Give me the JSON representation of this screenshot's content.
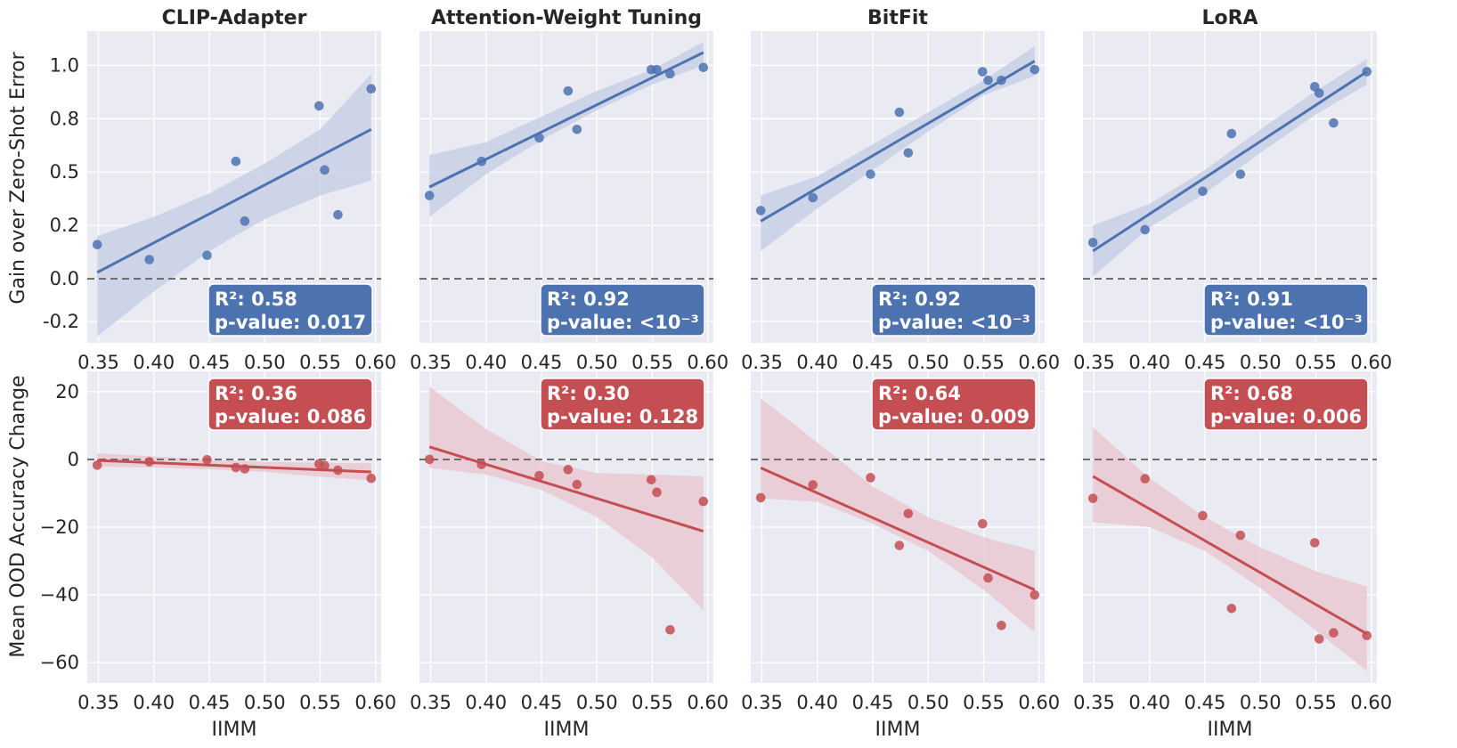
{
  "figure": {
    "row_ylabels": [
      "Gain over Zero-Shot Error",
      "Mean OOD Accuracy Change"
    ],
    "xlabel": "IIMM"
  },
  "chart_data": [
    {
      "type": "scatter",
      "title": "CLIP-Adapter",
      "xlabel": "",
      "ylabel": "Gain over Zero-Shot Error",
      "xlim": [
        0.34,
        0.605
      ],
      "ylim": [
        -0.3,
        1.16
      ],
      "xticks": [
        0.35,
        0.4,
        0.45,
        0.5,
        0.55,
        0.6
      ],
      "xtick_labels": [
        "0.35",
        "0.40",
        "0.45",
        "0.50",
        "0.55",
        "0.60"
      ],
      "yticks": [
        -0.2,
        0.0,
        0.25,
        0.5,
        0.75,
        1.0
      ],
      "ytick_labels": [
        "-0.2",
        "0.0",
        "0.2",
        "0.5",
        "0.8",
        "1.0"
      ],
      "refline_y": 0,
      "points": [
        [
          0.349,
          0.16
        ],
        [
          0.396,
          0.09
        ],
        [
          0.448,
          0.11
        ],
        [
          0.474,
          0.55
        ],
        [
          0.482,
          0.27
        ],
        [
          0.549,
          0.81
        ],
        [
          0.554,
          0.51
        ],
        [
          0.566,
          0.3
        ],
        [
          0.596,
          0.89
        ]
      ],
      "fit": [
        [
          0.349,
          0.03
        ],
        [
          0.596,
          0.7
        ]
      ],
      "ci_upper": [
        [
          0.349,
          0.2
        ],
        [
          0.4,
          0.29
        ],
        [
          0.45,
          0.4
        ],
        [
          0.5,
          0.54
        ],
        [
          0.55,
          0.7
        ],
        [
          0.596,
          0.96
        ]
      ],
      "ci_lower": [
        [
          0.349,
          -0.27
        ],
        [
          0.4,
          -0.06
        ],
        [
          0.45,
          0.13
        ],
        [
          0.5,
          0.28
        ],
        [
          0.55,
          0.39
        ],
        [
          0.596,
          0.46
        ]
      ],
      "color": "#4c72b0",
      "band_color": "#c8d0e6",
      "annotation": {
        "r2": "R²: 0.58",
        "p": "p-value: 0.017",
        "pos": "bottom-right"
      }
    },
    {
      "type": "scatter",
      "title": "Attention-Weight Tuning",
      "xlabel": "",
      "ylabel": "",
      "xlim": [
        0.34,
        0.605
      ],
      "ylim": [
        -0.3,
        1.16
      ],
      "xticks": [
        0.35,
        0.4,
        0.45,
        0.5,
        0.55,
        0.6
      ],
      "xtick_labels": [
        "0.35",
        "0.40",
        "0.45",
        "0.50",
        "0.55",
        "0.60"
      ],
      "yticks": [
        -0.2,
        0.0,
        0.25,
        0.5,
        0.75,
        1.0
      ],
      "ytick_labels": [],
      "refline_y": 0,
      "points": [
        [
          0.349,
          0.39
        ],
        [
          0.396,
          0.55
        ],
        [
          0.448,
          0.66
        ],
        [
          0.474,
          0.88
        ],
        [
          0.482,
          0.7
        ],
        [
          0.549,
          0.98
        ],
        [
          0.554,
          0.98
        ],
        [
          0.566,
          0.96
        ],
        [
          0.596,
          0.99
        ]
      ],
      "fit": [
        [
          0.349,
          0.43
        ],
        [
          0.596,
          1.06
        ]
      ],
      "ci_upper": [
        [
          0.349,
          0.58
        ],
        [
          0.4,
          0.64
        ],
        [
          0.45,
          0.76
        ],
        [
          0.5,
          0.88
        ],
        [
          0.55,
          0.98
        ],
        [
          0.596,
          1.11
        ]
      ],
      "ci_lower": [
        [
          0.349,
          0.29
        ],
        [
          0.4,
          0.49
        ],
        [
          0.45,
          0.65
        ],
        [
          0.5,
          0.79
        ],
        [
          0.55,
          0.91
        ],
        [
          0.596,
          1.0
        ]
      ],
      "color": "#4c72b0",
      "band_color": "#c8d0e6",
      "annotation": {
        "r2": "R²: 0.92",
        "p": "p-value: <10⁻³",
        "pos": "bottom-right"
      }
    },
    {
      "type": "scatter",
      "title": "BitFit",
      "xlabel": "",
      "ylabel": "",
      "xlim": [
        0.34,
        0.605
      ],
      "ylim": [
        -0.3,
        1.16
      ],
      "xticks": [
        0.35,
        0.4,
        0.45,
        0.5,
        0.55,
        0.6
      ],
      "xtick_labels": [
        "0.35",
        "0.40",
        "0.45",
        "0.50",
        "0.55",
        "0.60"
      ],
      "yticks": [
        -0.2,
        0.0,
        0.25,
        0.5,
        0.75,
        1.0
      ],
      "ytick_labels": [],
      "refline_y": 0,
      "points": [
        [
          0.349,
          0.32
        ],
        [
          0.396,
          0.38
        ],
        [
          0.448,
          0.49
        ],
        [
          0.474,
          0.78
        ],
        [
          0.482,
          0.59
        ],
        [
          0.549,
          0.97
        ],
        [
          0.554,
          0.93
        ],
        [
          0.566,
          0.93
        ],
        [
          0.596,
          0.98
        ]
      ],
      "fit": [
        [
          0.349,
          0.27
        ],
        [
          0.596,
          1.02
        ]
      ],
      "ci_upper": [
        [
          0.349,
          0.39
        ],
        [
          0.4,
          0.48
        ],
        [
          0.45,
          0.63
        ],
        [
          0.5,
          0.78
        ],
        [
          0.55,
          0.93
        ],
        [
          0.596,
          1.09
        ]
      ],
      "ci_lower": [
        [
          0.349,
          0.13
        ],
        [
          0.4,
          0.33
        ],
        [
          0.45,
          0.51
        ],
        [
          0.5,
          0.69
        ],
        [
          0.55,
          0.86
        ],
        [
          0.596,
          0.95
        ]
      ],
      "color": "#4c72b0",
      "band_color": "#c8d0e6",
      "annotation": {
        "r2": "R²: 0.92",
        "p": "p-value: <10⁻³",
        "pos": "bottom-right"
      }
    },
    {
      "type": "scatter",
      "title": "LoRA",
      "xlabel": "",
      "ylabel": "",
      "xlim": [
        0.34,
        0.605
      ],
      "ylim": [
        -0.3,
        1.16
      ],
      "xticks": [
        0.35,
        0.4,
        0.45,
        0.5,
        0.55,
        0.6
      ],
      "xtick_labels": [
        "0.35",
        "0.40",
        "0.45",
        "0.50",
        "0.55",
        "0.60"
      ],
      "yticks": [
        -0.2,
        0.0,
        0.25,
        0.5,
        0.75,
        1.0
      ],
      "ytick_labels": [],
      "refline_y": 0,
      "points": [
        [
          0.349,
          0.17
        ],
        [
          0.396,
          0.23
        ],
        [
          0.448,
          0.41
        ],
        [
          0.474,
          0.68
        ],
        [
          0.482,
          0.49
        ],
        [
          0.549,
          0.9
        ],
        [
          0.553,
          0.87
        ],
        [
          0.566,
          0.73
        ],
        [
          0.596,
          0.97
        ]
      ],
      "fit": [
        [
          0.349,
          0.13
        ],
        [
          0.596,
          0.97
        ]
      ],
      "ci_upper": [
        [
          0.349,
          0.25
        ],
        [
          0.4,
          0.35
        ],
        [
          0.45,
          0.51
        ],
        [
          0.5,
          0.7
        ],
        [
          0.55,
          0.88
        ],
        [
          0.596,
          1.03
        ]
      ],
      "ci_lower": [
        [
          0.349,
          0.01
        ],
        [
          0.4,
          0.24
        ],
        [
          0.45,
          0.4
        ],
        [
          0.5,
          0.59
        ],
        [
          0.55,
          0.77
        ],
        [
          0.596,
          0.91
        ]
      ],
      "color": "#4c72b0",
      "band_color": "#c8d0e6",
      "annotation": {
        "r2": "R²: 0.91",
        "p": "p-value: <10⁻³",
        "pos": "bottom-right"
      }
    },
    {
      "type": "scatter",
      "title": "",
      "xlabel": "IIMM",
      "ylabel": "Mean OOD Accuracy Change",
      "xlim": [
        0.34,
        0.605
      ],
      "ylim": [
        -66,
        26
      ],
      "xticks": [
        0.35,
        0.4,
        0.45,
        0.5,
        0.55,
        0.6
      ],
      "xtick_labels": [
        "0.35",
        "0.40",
        "0.45",
        "0.50",
        "0.55",
        "0.60"
      ],
      "yticks": [
        -60,
        -40,
        -20,
        0,
        20
      ],
      "ytick_labels": [
        "−60",
        "−40",
        "−20",
        "0",
        "20"
      ],
      "refline_y": 0,
      "points": [
        [
          0.349,
          -1.7
        ],
        [
          0.396,
          -0.7
        ],
        [
          0.448,
          -0.1
        ],
        [
          0.474,
          -2.4
        ],
        [
          0.482,
          -2.8
        ],
        [
          0.549,
          -1.3
        ],
        [
          0.554,
          -1.8
        ],
        [
          0.566,
          -3.2
        ],
        [
          0.596,
          -5.6
        ]
      ],
      "fit": [
        [
          0.349,
          -0.3
        ],
        [
          0.596,
          -3.7
        ]
      ],
      "ci_upper": [
        [
          0.349,
          1.8
        ],
        [
          0.4,
          0.9
        ],
        [
          0.45,
          -0.1
        ],
        [
          0.5,
          -0.7
        ],
        [
          0.55,
          -1.0
        ],
        [
          0.596,
          -1.1
        ]
      ],
      "ci_lower": [
        [
          0.349,
          -2.1
        ],
        [
          0.4,
          -2.4
        ],
        [
          0.45,
          -2.9
        ],
        [
          0.5,
          -3.7
        ],
        [
          0.55,
          -5.1
        ],
        [
          0.596,
          -6.2
        ]
      ],
      "color": "#c44e52",
      "band_color": "#e9c9d2",
      "annotation": {
        "r2": "R²: 0.36",
        "p": "p-value: 0.086",
        "pos": "top-right"
      }
    },
    {
      "type": "scatter",
      "title": "",
      "xlabel": "IIMM",
      "ylabel": "",
      "xlim": [
        0.34,
        0.605
      ],
      "ylim": [
        -66,
        26
      ],
      "xticks": [
        0.35,
        0.4,
        0.45,
        0.5,
        0.55,
        0.6
      ],
      "xtick_labels": [
        "0.35",
        "0.40",
        "0.45",
        "0.50",
        "0.55",
        "0.60"
      ],
      "yticks": [
        -60,
        -40,
        -20,
        0,
        20
      ],
      "ytick_labels": [],
      "refline_y": 0,
      "points": [
        [
          0.349,
          0.0
        ],
        [
          0.396,
          -1.5
        ],
        [
          0.448,
          -4.8
        ],
        [
          0.474,
          -3.0
        ],
        [
          0.482,
          -7.4
        ],
        [
          0.549,
          -6.0
        ],
        [
          0.554,
          -9.7
        ],
        [
          0.566,
          -50.3
        ],
        [
          0.596,
          -12.4
        ]
      ],
      "fit": [
        [
          0.349,
          3.7
        ],
        [
          0.596,
          -21.2
        ]
      ],
      "ci_upper": [
        [
          0.349,
          21.5
        ],
        [
          0.4,
          9.0
        ],
        [
          0.45,
          -0.5
        ],
        [
          0.5,
          -4.0
        ],
        [
          0.55,
          -4.5
        ],
        [
          0.596,
          -5.0
        ]
      ],
      "ci_lower": [
        [
          0.349,
          -2.5
        ],
        [
          0.4,
          -4.5
        ],
        [
          0.45,
          -9.0
        ],
        [
          0.5,
          -17.0
        ],
        [
          0.55,
          -29.0
        ],
        [
          0.596,
          -44.5
        ]
      ],
      "color": "#c44e52",
      "band_color": "#e9c9d2",
      "annotation": {
        "r2": "R²: 0.30",
        "p": "p-value: 0.128",
        "pos": "top-right"
      }
    },
    {
      "type": "scatter",
      "title": "",
      "xlabel": "IIMM",
      "ylabel": "",
      "xlim": [
        0.34,
        0.605
      ],
      "ylim": [
        -66,
        26
      ],
      "xticks": [
        0.35,
        0.4,
        0.45,
        0.5,
        0.55,
        0.6
      ],
      "xtick_labels": [
        "0.35",
        "0.40",
        "0.45",
        "0.50",
        "0.55",
        "0.60"
      ],
      "yticks": [
        -60,
        -40,
        -20,
        0,
        20
      ],
      "ytick_labels": [],
      "refline_y": 0,
      "points": [
        [
          0.349,
          -11.3
        ],
        [
          0.396,
          -7.5
        ],
        [
          0.448,
          -5.4
        ],
        [
          0.474,
          -25.4
        ],
        [
          0.482,
          -16.0
        ],
        [
          0.549,
          -19.0
        ],
        [
          0.554,
          -35.0
        ],
        [
          0.566,
          -49.0
        ],
        [
          0.596,
          -40.0
        ]
      ],
      "fit": [
        [
          0.349,
          -2.5
        ],
        [
          0.596,
          -38.5
        ]
      ],
      "ci_upper": [
        [
          0.349,
          18.0
        ],
        [
          0.4,
          5.0
        ],
        [
          0.45,
          -8.0
        ],
        [
          0.5,
          -17.0
        ],
        [
          0.55,
          -23.0
        ],
        [
          0.596,
          -27.0
        ]
      ],
      "ci_lower": [
        [
          0.349,
          -11.5
        ],
        [
          0.4,
          -12.5
        ],
        [
          0.45,
          -19.0
        ],
        [
          0.5,
          -27.0
        ],
        [
          0.55,
          -38.5
        ],
        [
          0.596,
          -51.0
        ]
      ],
      "color": "#c44e52",
      "band_color": "#e9c9d2",
      "annotation": {
        "r2": "R²: 0.64",
        "p": "p-value: 0.009",
        "pos": "top-right"
      }
    },
    {
      "type": "scatter",
      "title": "",
      "xlabel": "IIMM",
      "ylabel": "",
      "xlim": [
        0.34,
        0.605
      ],
      "ylim": [
        -66,
        26
      ],
      "xticks": [
        0.35,
        0.4,
        0.45,
        0.5,
        0.55,
        0.6
      ],
      "xtick_labels": [
        "0.35",
        "0.40",
        "0.45",
        "0.50",
        "0.55",
        "0.60"
      ],
      "yticks": [
        -60,
        -40,
        -20,
        0,
        20
      ],
      "ytick_labels": [],
      "refline_y": 0,
      "points": [
        [
          0.349,
          -11.5
        ],
        [
          0.396,
          -5.7
        ],
        [
          0.448,
          -16.6
        ],
        [
          0.474,
          -44.0
        ],
        [
          0.482,
          -22.4
        ],
        [
          0.549,
          -24.6
        ],
        [
          0.553,
          -53.0
        ],
        [
          0.566,
          -51.2
        ],
        [
          0.596,
          -52.0
        ]
      ],
      "fit": [
        [
          0.349,
          -5.0
        ],
        [
          0.596,
          -51.5
        ]
      ],
      "ci_upper": [
        [
          0.349,
          9.5
        ],
        [
          0.4,
          -5.5
        ],
        [
          0.45,
          -17.0
        ],
        [
          0.5,
          -26.0
        ],
        [
          0.55,
          -33.0
        ],
        [
          0.596,
          -37.5
        ]
      ],
      "ci_lower": [
        [
          0.349,
          -18.5
        ],
        [
          0.4,
          -20.0
        ],
        [
          0.45,
          -27.0
        ],
        [
          0.5,
          -38.0
        ],
        [
          0.55,
          -50.5
        ],
        [
          0.596,
          -62.5
        ]
      ],
      "color": "#c44e52",
      "band_color": "#e9c9d2",
      "annotation": {
        "r2": "R²: 0.68",
        "p": "p-value: 0.006",
        "pos": "top-right"
      }
    }
  ]
}
